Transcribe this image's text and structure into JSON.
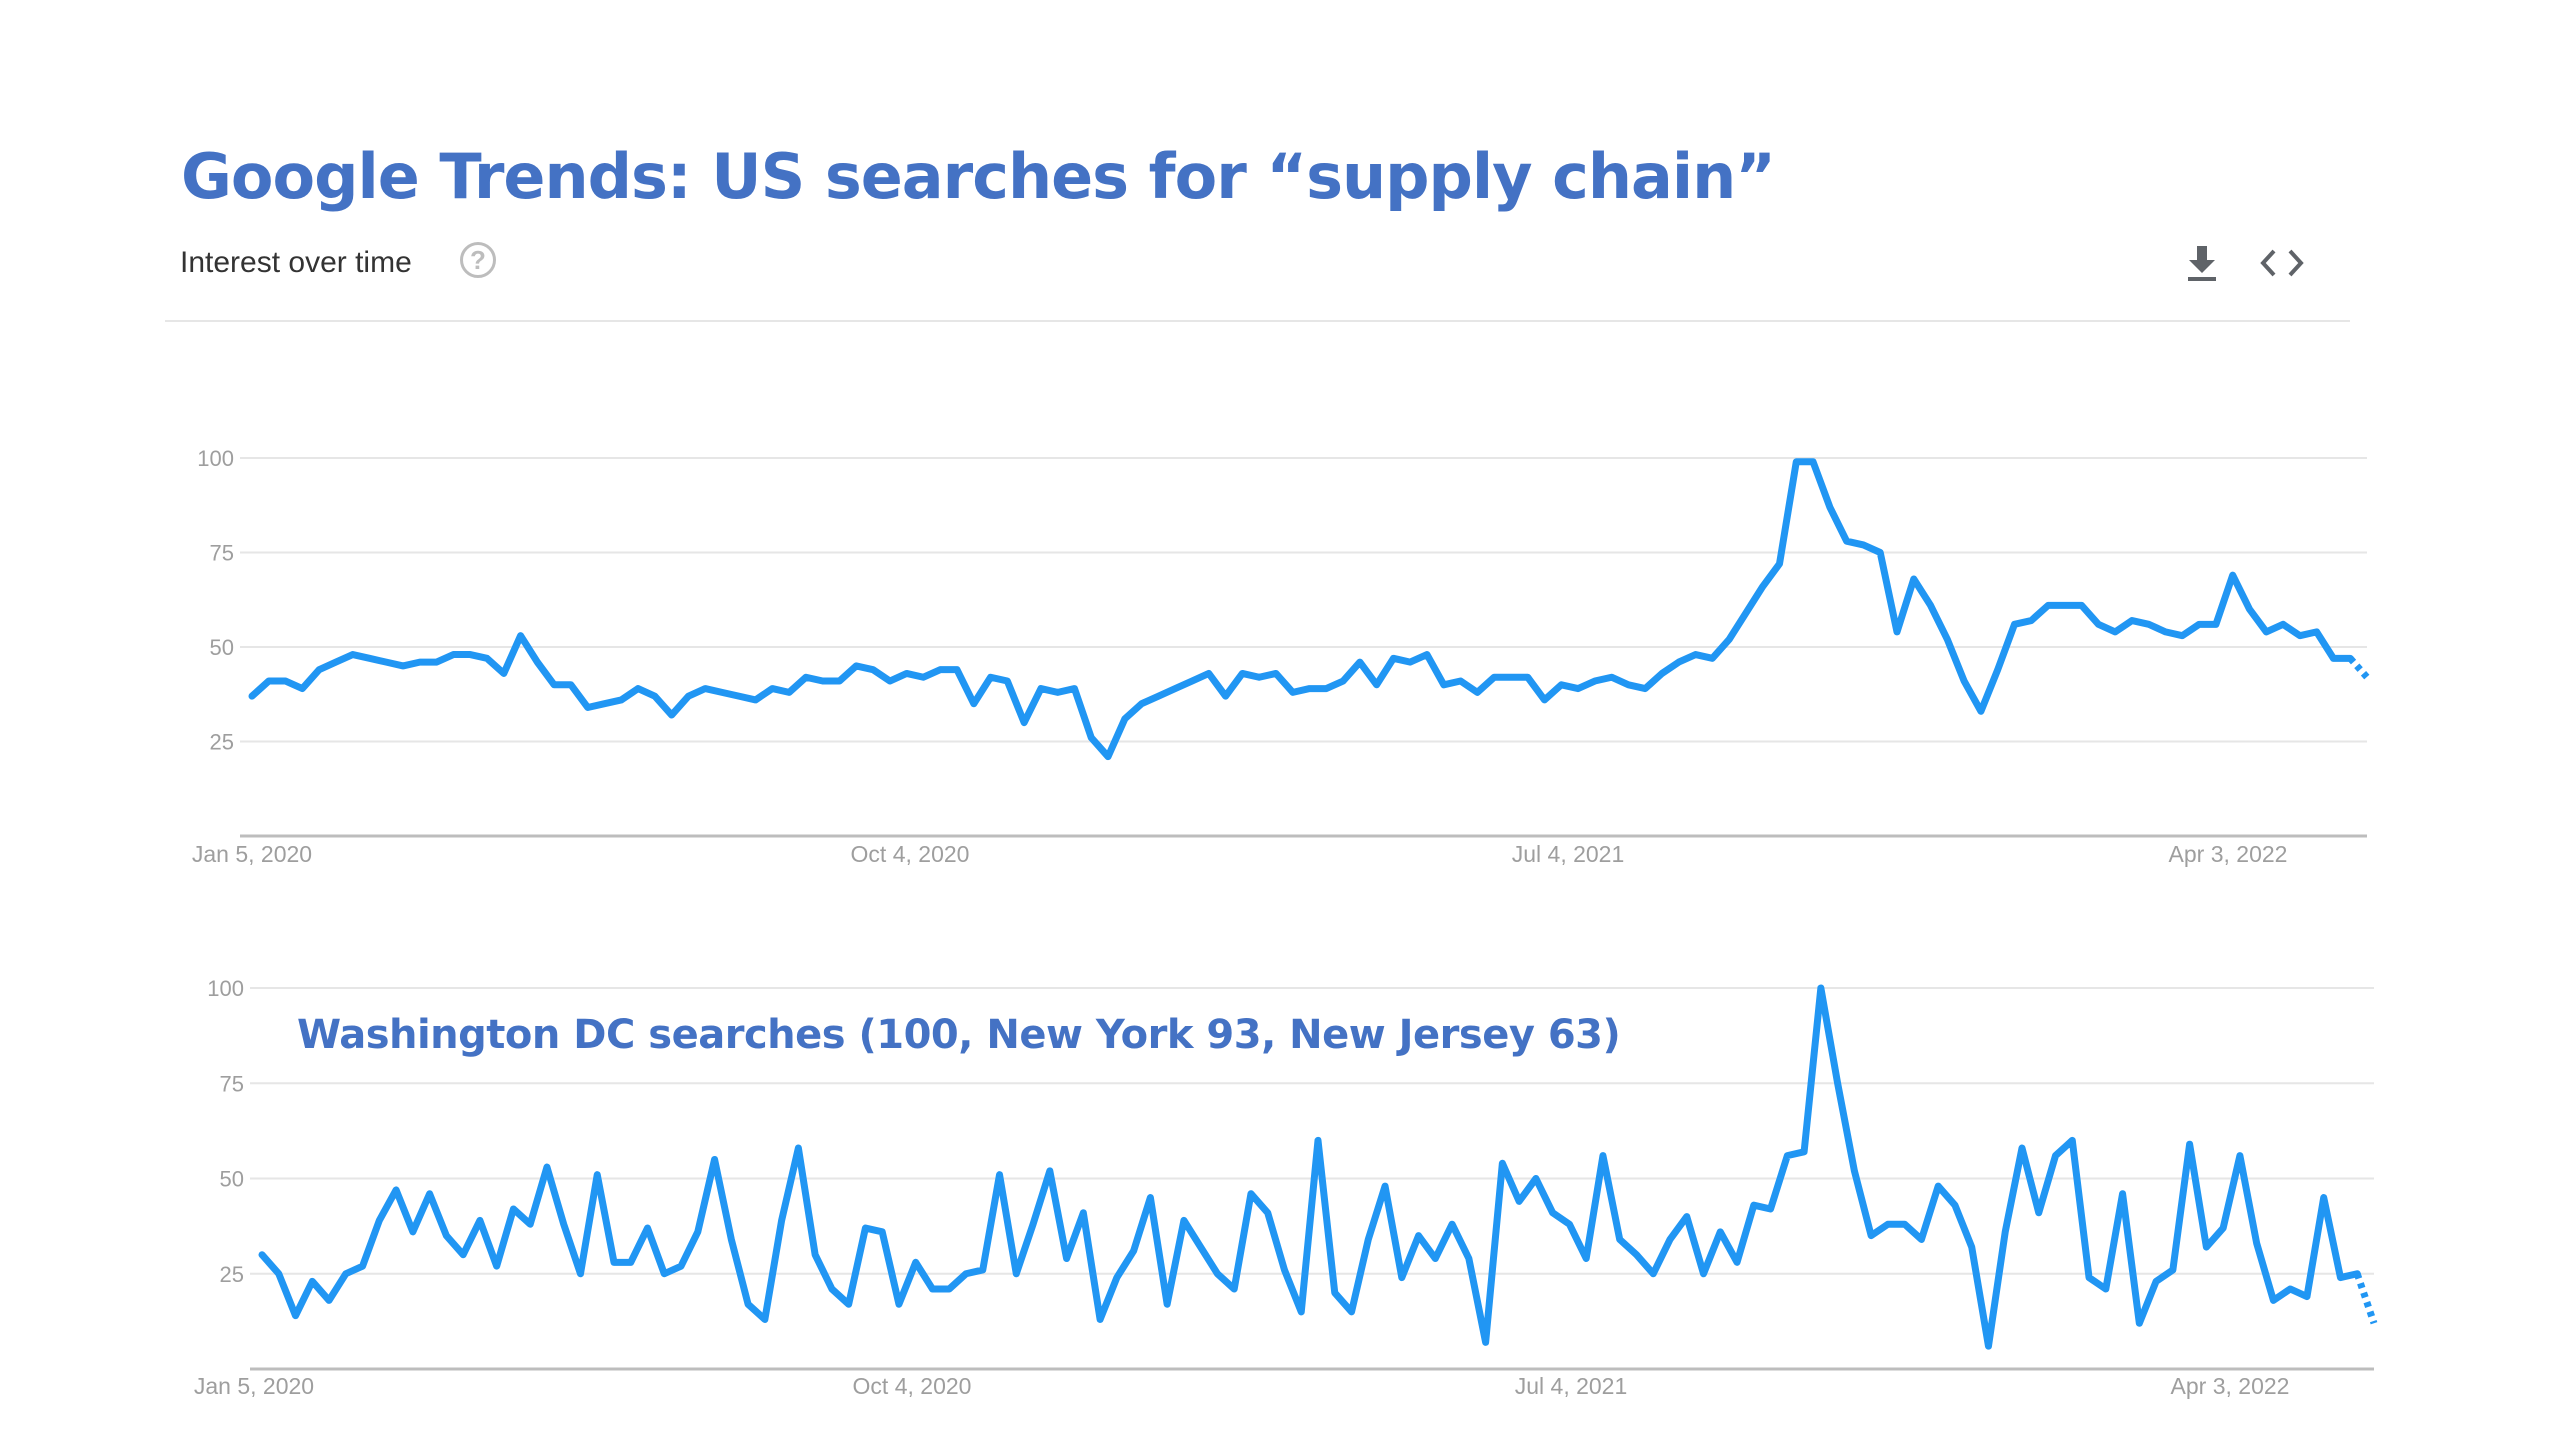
{
  "title": "Google Trends: US searches for “supply chain”",
  "subtitle": "Interest over time",
  "help_glyph": "?",
  "icons": {
    "help": "help-icon",
    "download": "download-icon",
    "embed": "embed-icon"
  },
  "colors": {
    "title": "#4472C4",
    "line": "#2196F3",
    "grid": "#e6e6e6",
    "axis": "#bdbdbd",
    "tick": "#9e9e9e"
  },
  "chart_data": [
    {
      "type": "line",
      "title": "",
      "xlabel": "",
      "ylabel": "",
      "x_ticks": [
        "Jan 5, 2020",
        "Oct 4, 2020",
        "Jul 4, 2021",
        "Apr 3, 2022"
      ],
      "y_ticks": [
        100,
        75,
        50,
        25
      ],
      "ylim": [
        0,
        100
      ],
      "grid": true,
      "series": [
        {
          "values": [
            37,
            41,
            41,
            39,
            44,
            46,
            48,
            47,
            46,
            45,
            46,
            46,
            48,
            48,
            47,
            43,
            53,
            46,
            40,
            40,
            34,
            35,
            36,
            39,
            37,
            32,
            37,
            39,
            38,
            37,
            36,
            39,
            38,
            42,
            41,
            41,
            45,
            44,
            41,
            43,
            42,
            44,
            44,
            35,
            42,
            41,
            30,
            39,
            38,
            39,
            26,
            21,
            31,
            35,
            37,
            39,
            41,
            43,
            37,
            43,
            42,
            43,
            38,
            39,
            39,
            41,
            46,
            40,
            47,
            46,
            48,
            40,
            41,
            38,
            42,
            42,
            42,
            36,
            40,
            39,
            41,
            42,
            40,
            39,
            43,
            46,
            48,
            47,
            52,
            59,
            66,
            72,
            99,
            99,
            87,
            78,
            77,
            75,
            54,
            68,
            61,
            52,
            41,
            33,
            44,
            56,
            57,
            61,
            61,
            61,
            56,
            54,
            57,
            56,
            54,
            53,
            56,
            56,
            69,
            60,
            54,
            56,
            53,
            54,
            47,
            47,
            42
          ]
        }
      ]
    },
    {
      "type": "line",
      "title": "",
      "annotation": "Washington DC searches (100, New York 93, New Jersey 63)",
      "xlabel": "",
      "ylabel": "",
      "x_ticks": [
        "Jan 5, 2020",
        "Oct 4, 2020",
        "Jul 4, 2021",
        "Apr 3, 2022"
      ],
      "y_ticks": [
        100,
        75,
        50,
        25
      ],
      "ylim": [
        0,
        100
      ],
      "grid": true,
      "series": [
        {
          "values": [
            30,
            25,
            14,
            23,
            18,
            25,
            27,
            39,
            47,
            36,
            46,
            35,
            30,
            39,
            27,
            42,
            38,
            53,
            38,
            25,
            51,
            28,
            28,
            37,
            25,
            27,
            36,
            55,
            34,
            17,
            13,
            39,
            58,
            30,
            21,
            17,
            37,
            36,
            17,
            28,
            21,
            21,
            25,
            26,
            51,
            25,
            38,
            52,
            29,
            41,
            13,
            24,
            31,
            45,
            17,
            39,
            32,
            25,
            21,
            46,
            41,
            26,
            15,
            60,
            20,
            15,
            34,
            48,
            24,
            35,
            29,
            38,
            29,
            7,
            54,
            44,
            50,
            41,
            38,
            29,
            56,
            34,
            30,
            25,
            34,
            40,
            25,
            36,
            28,
            43,
            42,
            56,
            57,
            100,
            75,
            52,
            35,
            38,
            38,
            34,
            48,
            43,
            32,
            6,
            36,
            58,
            41,
            56,
            60,
            24,
            21,
            46,
            12,
            23,
            26,
            59,
            32,
            37,
            56,
            33,
            18,
            21,
            19,
            45,
            24,
            25,
            12
          ]
        }
      ]
    }
  ]
}
